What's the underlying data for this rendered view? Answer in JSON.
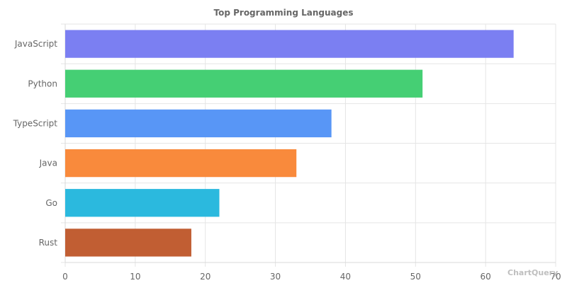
{
  "watermark": "ChartQuery",
  "chart_data": {
    "type": "bar",
    "orientation": "horizontal",
    "title": "Top Programming Languages",
    "categories": [
      "JavaScript",
      "Python",
      "TypeScript",
      "Java",
      "Go",
      "Rust"
    ],
    "values": [
      64,
      51,
      38,
      33,
      22,
      18
    ],
    "colors": [
      "#7b7ff2",
      "#45cf74",
      "#5896f6",
      "#f98a3c",
      "#2bb9de",
      "#c15e33"
    ],
    "xlim": [
      0,
      70
    ],
    "x_ticks": [
      0,
      10,
      20,
      30,
      40,
      50,
      60,
      70
    ],
    "grid": true,
    "xlabel": "",
    "ylabel": ""
  }
}
